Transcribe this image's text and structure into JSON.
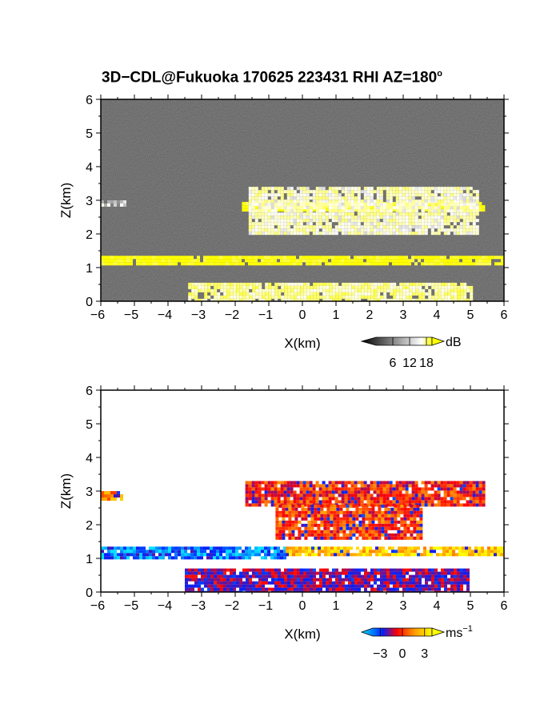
{
  "title": {
    "main": "3D−CDL@Fukuoka 170625 223431 RHI AZ=180",
    "degree": "o"
  },
  "chart_data": [
    {
      "type": "heatmap",
      "name": "reflectivity",
      "xlabel": "X(km)",
      "ylabel": "Z(km)",
      "xlim": [
        -6,
        6
      ],
      "ylim": [
        0,
        6
      ],
      "xticks": [
        "−6",
        "−5",
        "−4",
        "−3",
        "−2",
        "−1",
        "0",
        "1",
        "2",
        "3",
        "4",
        "5",
        "6"
      ],
      "yticks": [
        "0",
        "1",
        "2",
        "3",
        "4",
        "5",
        "6"
      ],
      "colorbar": {
        "unit": "dB",
        "ticks": [
          "6",
          "12",
          "18"
        ],
        "range": [
          0,
          20
        ],
        "colors": [
          "#000000",
          "#ffffff",
          "#ffff00"
        ]
      },
      "layers": [
        {
          "x": [
            -6,
            6
          ],
          "z": [
            1.1,
            1.35
          ],
          "value": 20
        },
        {
          "x": [
            -1.8,
            5.4
          ],
          "z": [
            2.75,
            2.95
          ],
          "value": 20
        },
        {
          "x": [
            -1.6,
            5.2
          ],
          "z": [
            2.0,
            3.4
          ],
          "value": 12
        },
        {
          "x": [
            -3.4,
            5.0
          ],
          "z": [
            0.0,
            0.55
          ],
          "value": 14
        },
        {
          "x": [
            -6,
            -5.3
          ],
          "z": [
            2.85,
            3.0
          ],
          "value": 8
        }
      ]
    },
    {
      "type": "heatmap",
      "name": "doppler_velocity",
      "xlabel": "X(km)",
      "ylabel": "Z(km)",
      "xlim": [
        -6,
        6
      ],
      "ylim": [
        0,
        6
      ],
      "xticks": [
        "−6",
        "−5",
        "−4",
        "−3",
        "−2",
        "−1",
        "0",
        "1",
        "2",
        "3",
        "4",
        "5",
        "6"
      ],
      "yticks": [
        "0",
        "1",
        "2",
        "3",
        "4",
        "5",
        "6"
      ],
      "colorbar": {
        "unit": "ms",
        "unit_exp": "−1",
        "ticks": [
          "−3",
          "0",
          "3"
        ],
        "range": [
          -4,
          4
        ],
        "colors": [
          "#00e0ff",
          "#0020ff",
          "#ff0000",
          "#ff9900",
          "#ffff00"
        ]
      },
      "layers": [
        {
          "x": [
            -6,
            -0.5
          ],
          "z": [
            1.05,
            1.35
          ],
          "value": -3
        },
        {
          "x": [
            -0.5,
            6
          ],
          "z": [
            1.1,
            1.35
          ],
          "value": 3
        },
        {
          "x": [
            -1.7,
            5.4
          ],
          "z": [
            2.6,
            3.3
          ],
          "value": 0.5
        },
        {
          "x": [
            -0.8,
            3.5
          ],
          "z": [
            1.6,
            2.6
          ],
          "value": 0.8
        },
        {
          "x": [
            -3.5,
            4.9
          ],
          "z": [
            0.0,
            0.7
          ],
          "value": -1
        },
        {
          "x": [
            -6,
            -5.4
          ],
          "z": [
            2.8,
            3.0
          ],
          "value": 2
        }
      ]
    }
  ]
}
